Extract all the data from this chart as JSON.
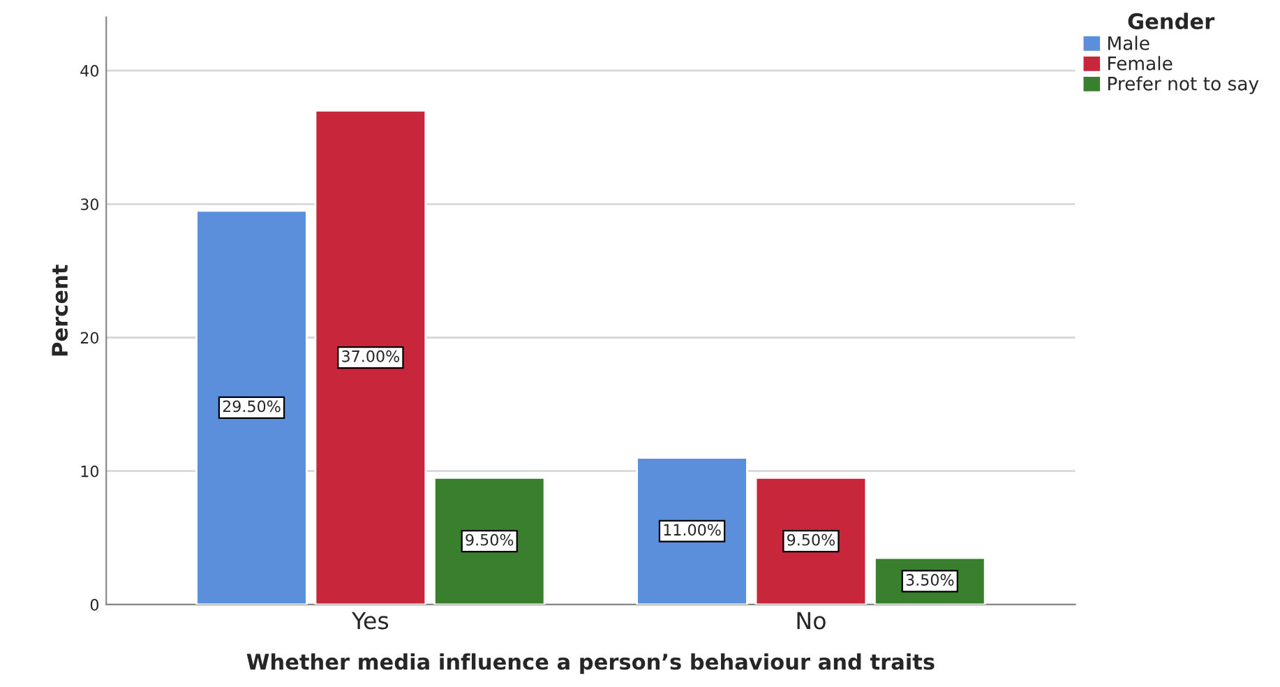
{
  "chart_data": {
    "type": "bar",
    "xlabel": "Whether media influence a person’s behaviour and traits",
    "ylabel": "Percent",
    "legend_title": "Gender",
    "categories": [
      "Yes",
      "No"
    ],
    "series": [
      {
        "name": "Male",
        "color": "#5b8fdc",
        "values": [
          29.5,
          11.0
        ],
        "value_labels": [
          "29.50%",
          "11.00%"
        ]
      },
      {
        "name": "Female",
        "color": "#c8263a",
        "values": [
          37.0,
          9.5
        ],
        "value_labels": [
          "37.00%",
          "9.50%"
        ]
      },
      {
        "name": "Prefer not to say",
        "color": "#3a7f2e",
        "values": [
          9.5,
          3.5
        ],
        "value_labels": [
          "9.50%",
          "3.50%"
        ]
      }
    ],
    "ylim": [
      0,
      44
    ],
    "yticks": [
      0,
      10,
      20,
      30,
      40
    ],
    "grid": "y",
    "legend": "top right"
  }
}
